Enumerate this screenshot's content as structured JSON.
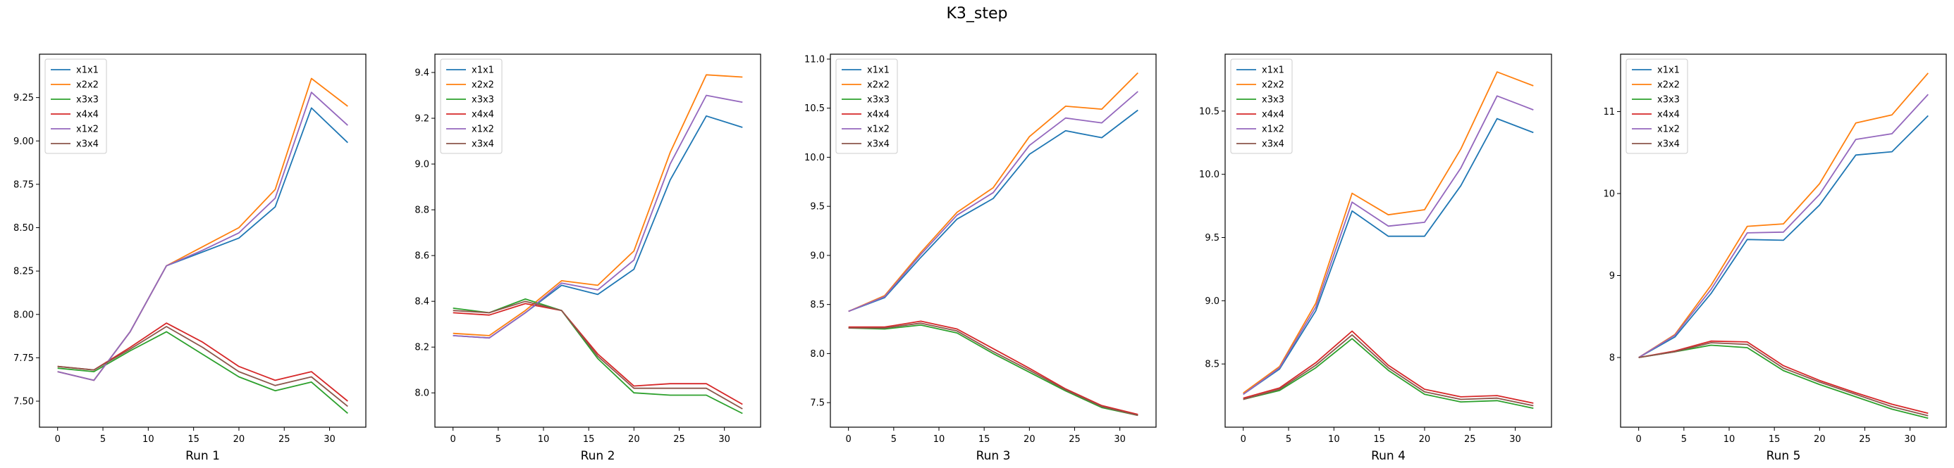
{
  "figure": {
    "title": "K3_step"
  },
  "colors": {
    "x1x1": "#1f77b4",
    "x2x2": "#ff7f0e",
    "x3x3": "#2ca02c",
    "x4x4": "#d62728",
    "x1x2": "#9467bd",
    "x3x4": "#8c564b"
  },
  "chart_data": [
    {
      "type": "line",
      "xlabel": "Run 1",
      "ylabel": "",
      "x": [
        0,
        4,
        8,
        12,
        16,
        20,
        24,
        28,
        32
      ],
      "xticks": [
        0,
        5,
        10,
        15,
        20,
        25,
        30
      ],
      "xlim": [
        -2,
        34
      ],
      "ylim": [
        7.35,
        9.5
      ],
      "yticks": [
        7.5,
        7.75,
        8.0,
        8.25,
        8.5,
        8.75,
        9.0,
        9.25
      ],
      "ytick_labels": [
        "7.50",
        "7.75",
        "8.00",
        "8.25",
        "8.50",
        "8.75",
        "9.00",
        "9.25"
      ],
      "legend": "upper-left",
      "grid": false,
      "series": [
        {
          "name": "x1x1",
          "values": [
            7.67,
            7.62,
            7.9,
            8.28,
            8.36,
            8.44,
            8.62,
            9.19,
            8.99
          ]
        },
        {
          "name": "x2x2",
          "values": [
            7.67,
            7.62,
            7.9,
            8.28,
            8.39,
            8.5,
            8.72,
            9.36,
            9.2
          ]
        },
        {
          "name": "x3x3",
          "values": [
            7.69,
            7.67,
            7.79,
            7.9,
            7.77,
            7.64,
            7.56,
            7.61,
            7.43
          ]
        },
        {
          "name": "x4x4",
          "values": [
            7.7,
            7.68,
            7.81,
            7.95,
            7.84,
            7.7,
            7.62,
            7.67,
            7.5
          ]
        },
        {
          "name": "x1x2",
          "values": [
            7.67,
            7.62,
            7.9,
            8.28,
            8.37,
            8.47,
            8.67,
            9.28,
            9.09
          ]
        },
        {
          "name": "x3x4",
          "values": [
            7.7,
            7.68,
            7.8,
            7.93,
            7.81,
            7.67,
            7.59,
            7.64,
            7.47
          ]
        }
      ]
    },
    {
      "type": "line",
      "xlabel": "Run 2",
      "ylabel": "",
      "x": [
        0,
        4,
        8,
        12,
        16,
        20,
        24,
        28,
        32
      ],
      "xticks": [
        0,
        5,
        10,
        15,
        20,
        25,
        30
      ],
      "xlim": [
        -2,
        34
      ],
      "ylim": [
        7.85,
        9.48
      ],
      "yticks": [
        8.0,
        8.2,
        8.4,
        8.6,
        8.8,
        9.0,
        9.2,
        9.4
      ],
      "ytick_labels": [
        "8.0",
        "8.2",
        "8.4",
        "8.6",
        "8.8",
        "9.0",
        "9.2",
        "9.4"
      ],
      "legend": "upper-left",
      "grid": false,
      "series": [
        {
          "name": "x1x1",
          "values": [
            8.25,
            8.24,
            8.35,
            8.47,
            8.43,
            8.54,
            8.93,
            9.21,
            9.16
          ]
        },
        {
          "name": "x2x2",
          "values": [
            8.26,
            8.25,
            8.36,
            8.49,
            8.47,
            8.62,
            9.05,
            9.39,
            9.38
          ]
        },
        {
          "name": "x3x3",
          "values": [
            8.37,
            8.35,
            8.41,
            8.36,
            8.15,
            8.0,
            7.99,
            7.99,
            7.91
          ]
        },
        {
          "name": "x4x4",
          "values": [
            8.35,
            8.34,
            8.39,
            8.36,
            8.17,
            8.03,
            8.04,
            8.04,
            7.95
          ]
        },
        {
          "name": "x1x2",
          "values": [
            8.25,
            8.24,
            8.35,
            8.48,
            8.45,
            8.58,
            9.0,
            9.3,
            9.27
          ]
        },
        {
          "name": "x3x4",
          "values": [
            8.36,
            8.35,
            8.4,
            8.36,
            8.16,
            8.02,
            8.02,
            8.02,
            7.93
          ]
        }
      ]
    },
    {
      "type": "line",
      "xlabel": "Run 3",
      "ylabel": "",
      "x": [
        0,
        4,
        8,
        12,
        16,
        20,
        24,
        28,
        32
      ],
      "xticks": [
        0,
        5,
        10,
        15,
        20,
        25,
        30
      ],
      "xlim": [
        -2,
        34
      ],
      "ylim": [
        7.25,
        11.05
      ],
      "yticks": [
        7.5,
        8.0,
        8.5,
        9.0,
        9.5,
        10.0,
        10.5,
        11.0
      ],
      "ytick_labels": [
        "7.5",
        "8.0",
        "8.5",
        "9.0",
        "9.5",
        "10.0",
        "10.5",
        "11.0"
      ],
      "legend": "upper-left",
      "grid": false,
      "series": [
        {
          "name": "x1x1",
          "values": [
            8.43,
            8.57,
            8.98,
            9.37,
            9.58,
            10.03,
            10.27,
            10.2,
            10.48
          ]
        },
        {
          "name": "x2x2",
          "values": [
            8.43,
            8.59,
            9.03,
            9.44,
            9.69,
            10.21,
            10.52,
            10.49,
            10.86
          ]
        },
        {
          "name": "x3x3",
          "values": [
            8.26,
            8.25,
            8.29,
            8.21,
            8.0,
            7.81,
            7.62,
            7.45,
            7.37
          ]
        },
        {
          "name": "x4x4",
          "values": [
            8.27,
            8.27,
            8.33,
            8.25,
            8.05,
            7.85,
            7.64,
            7.47,
            7.38
          ]
        },
        {
          "name": "x1x2",
          "values": [
            8.43,
            8.58,
            9.01,
            9.41,
            9.64,
            10.12,
            10.4,
            10.35,
            10.67
          ]
        },
        {
          "name": "x3x4",
          "values": [
            8.26,
            8.26,
            8.31,
            8.23,
            8.02,
            7.83,
            7.63,
            7.46,
            7.37
          ]
        }
      ]
    },
    {
      "type": "line",
      "xlabel": "Run 4",
      "ylabel": "",
      "x": [
        0,
        4,
        8,
        12,
        16,
        20,
        24,
        28,
        32
      ],
      "xticks": [
        0,
        5,
        10,
        15,
        20,
        25,
        30
      ],
      "xlim": [
        -2,
        34
      ],
      "ylim": [
        8.0,
        10.95
      ],
      "yticks": [
        8.5,
        9.0,
        9.5,
        10.0,
        10.5
      ],
      "ytick_labels": [
        "8.5",
        "9.0",
        "9.5",
        "10.0",
        "10.5"
      ],
      "legend": "upper-left",
      "grid": false,
      "series": [
        {
          "name": "x1x1",
          "values": [
            8.26,
            8.46,
            8.92,
            9.71,
            9.51,
            9.51,
            9.91,
            10.44,
            10.33
          ]
        },
        {
          "name": "x2x2",
          "values": [
            8.27,
            8.48,
            8.98,
            9.85,
            9.68,
            9.72,
            10.2,
            10.81,
            10.7
          ]
        },
        {
          "name": "x3x3",
          "values": [
            8.22,
            8.29,
            8.47,
            8.7,
            8.45,
            8.26,
            8.2,
            8.21,
            8.15
          ]
        },
        {
          "name": "x4x4",
          "values": [
            8.23,
            8.31,
            8.51,
            8.76,
            8.49,
            8.3,
            8.24,
            8.25,
            8.19
          ]
        },
        {
          "name": "x1x2",
          "values": [
            8.26,
            8.47,
            8.95,
            9.78,
            9.59,
            9.62,
            10.05,
            10.62,
            10.51
          ]
        },
        {
          "name": "x3x4",
          "values": [
            8.22,
            8.3,
            8.49,
            8.73,
            8.47,
            8.28,
            8.22,
            8.23,
            8.17
          ]
        }
      ]
    },
    {
      "type": "line",
      "xlabel": "Run 5",
      "ylabel": "",
      "x": [
        0,
        4,
        8,
        12,
        16,
        20,
        24,
        28,
        32
      ],
      "xticks": [
        0,
        5,
        10,
        15,
        20,
        25,
        30
      ],
      "xlim": [
        -2,
        34
      ],
      "ylim": [
        7.15,
        11.7
      ],
      "yticks": [
        8,
        9,
        10,
        11
      ],
      "ytick_labels": [
        "8",
        "9",
        "10",
        "11"
      ],
      "legend": "upper-left",
      "grid": false,
      "series": [
        {
          "name": "x1x1",
          "values": [
            8.0,
            8.25,
            8.78,
            9.44,
            9.43,
            9.86,
            10.47,
            10.51,
            10.95
          ]
        },
        {
          "name": "x2x2",
          "values": [
            8.0,
            8.28,
            8.88,
            9.6,
            9.63,
            10.12,
            10.86,
            10.96,
            11.47
          ]
        },
        {
          "name": "x3x3",
          "values": [
            8.0,
            8.07,
            8.15,
            8.12,
            7.84,
            7.67,
            7.52,
            7.37,
            7.26
          ]
        },
        {
          "name": "x4x4",
          "values": [
            8.0,
            8.08,
            8.2,
            8.19,
            7.9,
            7.72,
            7.57,
            7.43,
            7.32
          ]
        },
        {
          "name": "x1x2",
          "values": [
            8.0,
            8.27,
            8.83,
            9.52,
            9.53,
            9.99,
            10.66,
            10.73,
            11.21
          ]
        },
        {
          "name": "x3x4",
          "values": [
            8.0,
            8.07,
            8.18,
            8.16,
            7.87,
            7.7,
            7.55,
            7.4,
            7.29
          ]
        }
      ]
    }
  ]
}
